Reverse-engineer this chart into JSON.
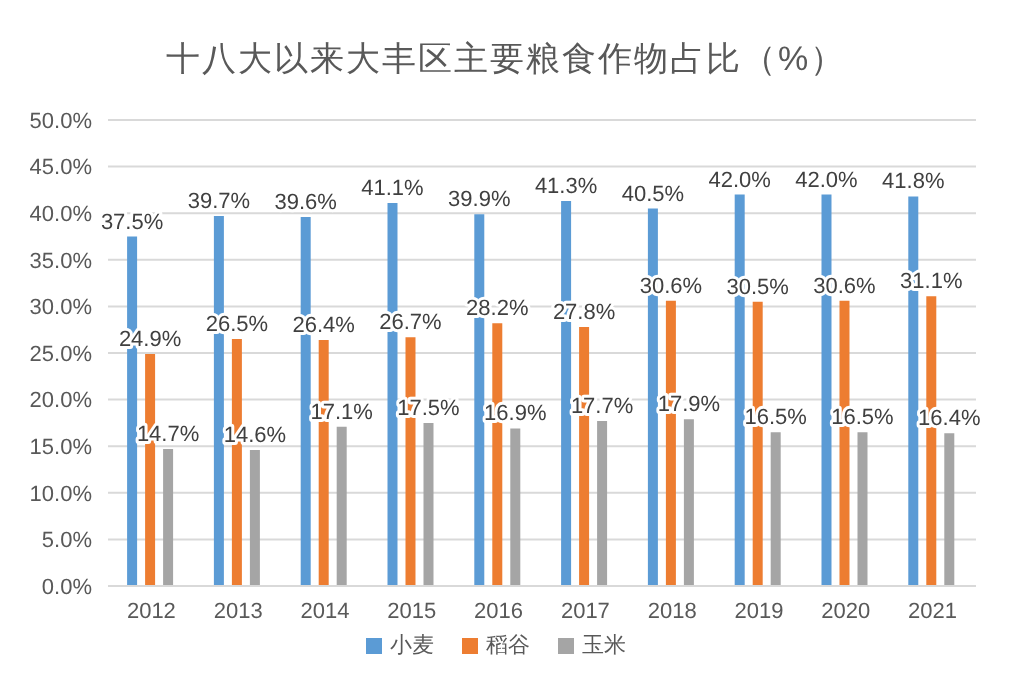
{
  "chart_data": {
    "type": "bar",
    "title": "十八大以来大丰区主要粮食作物占比（%）",
    "categories": [
      "2012",
      "2013",
      "2014",
      "2015",
      "2016",
      "2017",
      "2018",
      "2019",
      "2020",
      "2021"
    ],
    "series": [
      {
        "name": "小麦",
        "color": "#5b9bd5",
        "values": [
          37.5,
          39.7,
          39.6,
          41.1,
          39.9,
          41.3,
          40.5,
          42.0,
          42.0,
          41.8
        ],
        "value_labels": [
          "37.5%",
          "39.7%",
          "39.6%",
          "41.1%",
          "39.9%",
          "41.3%",
          "40.5%",
          "42.0%",
          "42.0%",
          "41.8%"
        ]
      },
      {
        "name": "稻谷",
        "color": "#ed7d31",
        "values": [
          24.9,
          26.5,
          26.4,
          26.7,
          28.2,
          27.8,
          30.6,
          30.5,
          30.6,
          31.1
        ],
        "value_labels": [
          "24.9%",
          "26.5%",
          "26.4%",
          "26.7%",
          "28.2%",
          "27.8%",
          "30.6%",
          "30.5%",
          "30.6%",
          "31.1%"
        ]
      },
      {
        "name": "玉米",
        "color": "#a5a5a5",
        "values": [
          14.7,
          14.6,
          17.1,
          17.5,
          16.9,
          17.7,
          17.9,
          16.5,
          16.5,
          16.4
        ],
        "value_labels": [
          "14.7%",
          "14.6%",
          "17.1%",
          "17.5%",
          "16.9%",
          "17.7%",
          "17.9%",
          "16.5%",
          "16.5%",
          "16.4%"
        ]
      }
    ],
    "ylim": [
      0,
      50
    ],
    "yticks": [
      {
        "value": 0,
        "label": "0.0%"
      },
      {
        "value": 5,
        "label": "5.0%"
      },
      {
        "value": 10,
        "label": "10.0%"
      },
      {
        "value": 15,
        "label": "15.0%"
      },
      {
        "value": 20,
        "label": "20.0%"
      },
      {
        "value": 25,
        "label": "25.0%"
      },
      {
        "value": 30,
        "label": "30.0%"
      },
      {
        "value": 35,
        "label": "35.0%"
      },
      {
        "value": 40,
        "label": "40.0%"
      },
      {
        "value": 45,
        "label": "45.0%"
      },
      {
        "value": 50,
        "label": "50.0%"
      }
    ],
    "grid": "y",
    "legend": "bottom"
  }
}
